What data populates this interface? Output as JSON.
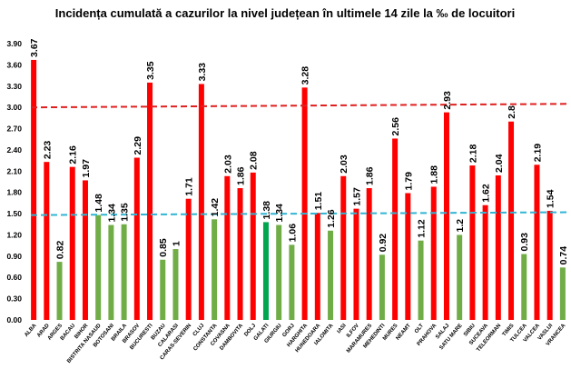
{
  "chart_data": {
    "type": "bar",
    "title": "Incidența cumulată a cazurilor la nivel județean în ultimele 14 zile la ‰ de locuitori",
    "xlabel": "",
    "ylabel": "",
    "ylim": [
      0,
      3.9
    ],
    "yticks": [
      "0.00",
      "0.30",
      "0.60",
      "0.90",
      "1.20",
      "1.50",
      "1.80",
      "2.10",
      "2.40",
      "2.70",
      "3.00",
      "3.30",
      "3.60",
      "3.90"
    ],
    "grid": false,
    "legend": "none",
    "categories": [
      "ALBA",
      "ARAD",
      "ARGES",
      "BACAU",
      "BIHOR",
      "BISTRITA NASAUD",
      "BOTOSANI",
      "BRAILA",
      "BRASOV",
      "BUCURESTI",
      "BUZAU",
      "CALARASI",
      "CARAS-SEVERIN",
      "CLUJ",
      "CONSTANTA",
      "COVASNA",
      "DAMBOVITA",
      "DOLJ",
      "GALATI",
      "GIURGIU",
      "GORJ",
      "HARGHITA",
      "HUNEDOARA",
      "IALOMITA",
      "IASI",
      "ILFOV",
      "MARAMURES",
      "MEHEDINTI",
      "MURES",
      "NEAMT",
      "OLT",
      "PRAHOVA",
      "SALAJ",
      "SATU MARE",
      "SIBIU",
      "SUCEAVA",
      "TELEORMAN",
      "TIMIS",
      "TULCEA",
      "VALCEA",
      "VASLUI",
      "VRANCEA"
    ],
    "values": [
      3.67,
      2.23,
      0.82,
      2.16,
      1.97,
      1.48,
      1.34,
      1.35,
      2.29,
      3.35,
      0.85,
      1,
      1.71,
      3.33,
      1.42,
      2.03,
      1.86,
      2.08,
      1.38,
      1.34,
      1.06,
      3.28,
      1.51,
      1.26,
      2.03,
      1.57,
      1.86,
      0.92,
      2.56,
      1.79,
      1.12,
      1.88,
      2.93,
      1.2,
      2.18,
      1.62,
      2.04,
      2.8,
      0.93,
      2.19,
      1.54,
      0.74
    ],
    "value_labels": [
      "3.67",
      "2.23",
      "0.82",
      "2.16",
      "1.97",
      "1.48",
      "1.34",
      "1.35",
      "2.29",
      "3.35",
      "0.85",
      "1",
      "1.71",
      "3.33",
      "1.42",
      "2.03",
      "1.86",
      "2.08",
      "1.38",
      "1.34",
      "1.06",
      "3.28",
      "1.51",
      "1.26",
      "2.03",
      "1.57",
      "1.86",
      "0.92",
      "2.56",
      "1.79",
      "1.12",
      "1.88",
      "2.93",
      "1.2",
      "2.18",
      "1.62",
      "2.04",
      "2.8",
      "0.93",
      "2.19",
      "1.54",
      "0.74"
    ],
    "thresholds": [
      {
        "from": 1.48,
        "to": 1.52,
        "color": "#31b5d4"
      },
      {
        "from": 3.0,
        "to": 3.05,
        "color": "#e02020"
      }
    ],
    "colors": {
      "high": "#ff0000",
      "low": "#70ad47",
      "highlight": "#00a550"
    },
    "highlighted_category": "GALATI",
    "threshold_for_color": 1.5
  }
}
